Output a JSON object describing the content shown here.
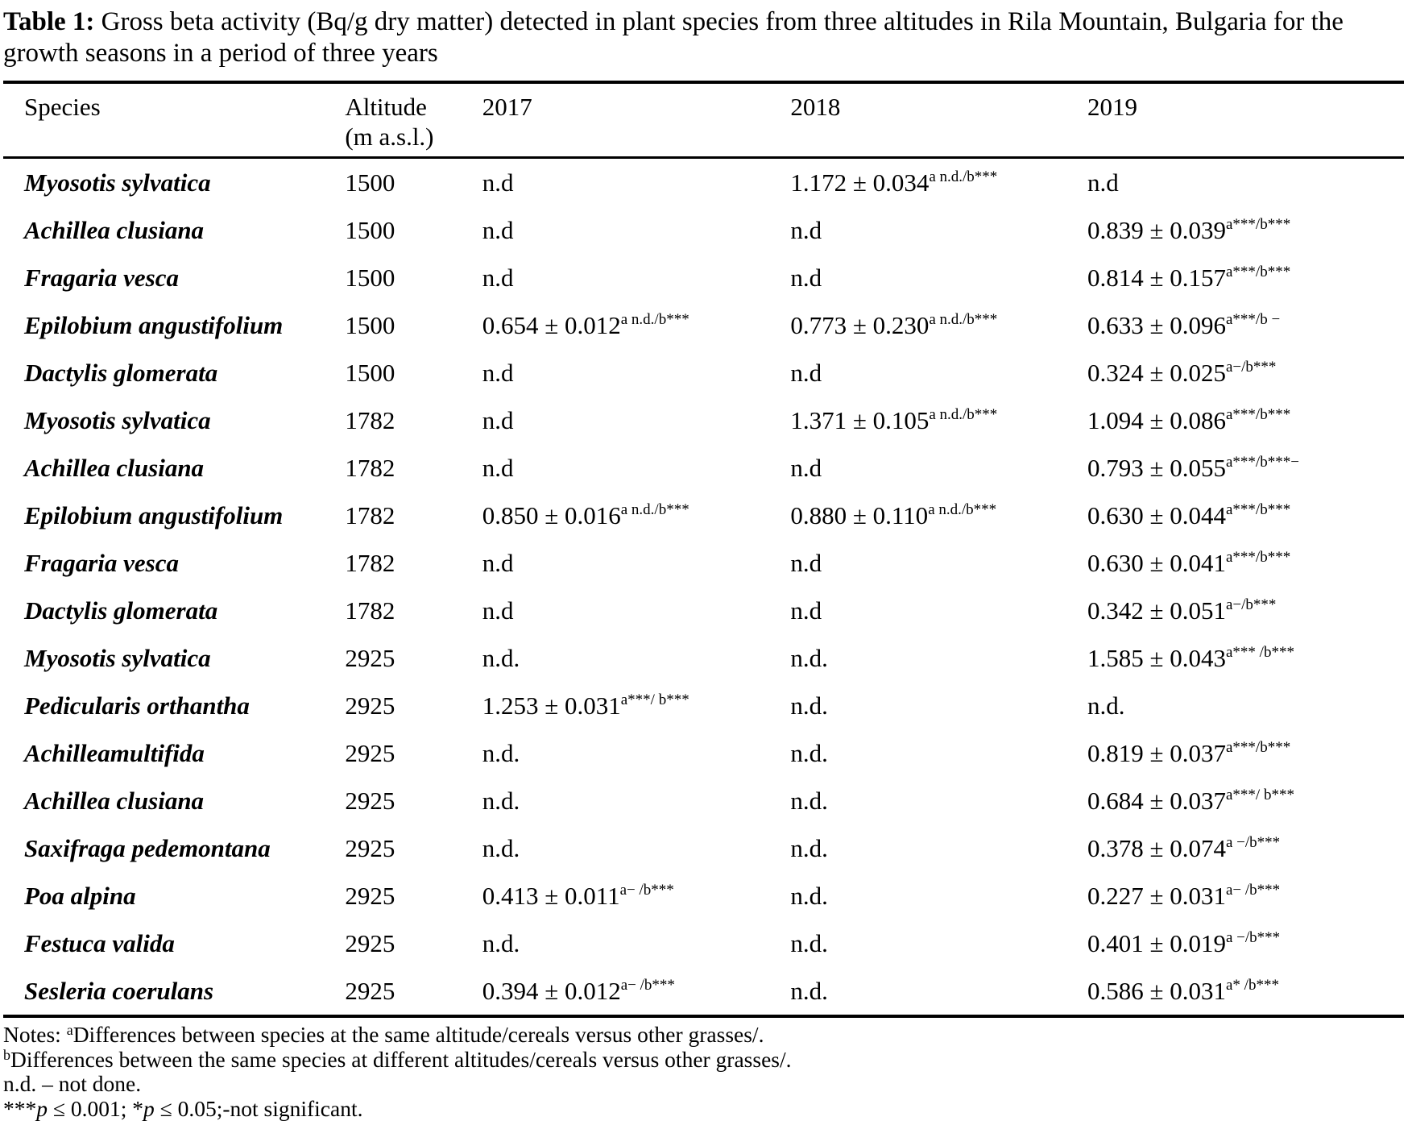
{
  "caption": {
    "label": "Table 1:",
    "text": " Gross beta activity (Bq/g dry matter) detected in plant species from three altitudes in Rila Mountain, Bulgaria for the growth seasons in a period of three years"
  },
  "table": {
    "headers": {
      "species": "Species",
      "altitude_line1": "Altitude",
      "altitude_line2": "(m a.s.l.)",
      "y2017": "2017",
      "y2018": "2018",
      "y2019": "2019"
    },
    "rows": [
      {
        "species": "Myosotis sylvatica",
        "altitude": "1500",
        "y2017": {
          "val": "n.d",
          "sup": ""
        },
        "y2018": {
          "val": "1.172 ± 0.034",
          "sup": "a n.d./b***"
        },
        "y2019": {
          "val": "n.d",
          "sup": ""
        }
      },
      {
        "species": "Achillea clusiana",
        "altitude": "1500",
        "y2017": {
          "val": "n.d",
          "sup": ""
        },
        "y2018": {
          "val": "n.d",
          "sup": ""
        },
        "y2019": {
          "val": "0.839 ± 0.039",
          "sup": "a***/b***"
        }
      },
      {
        "species": "Fragaria vesca",
        "altitude": "1500",
        "y2017": {
          "val": "n.d",
          "sup": ""
        },
        "y2018": {
          "val": "n.d",
          "sup": ""
        },
        "y2019": {
          "val": "0.814 ± 0.157",
          "sup": "a***/b***"
        }
      },
      {
        "species": "Epilobium angustifolium",
        "altitude": "1500",
        "y2017": {
          "val": "0.654 ± 0.012",
          "sup": "a n.d./b***"
        },
        "y2018": {
          "val": "0.773 ± 0.230",
          "sup": "a n.d./b***"
        },
        "y2019": {
          "val": "0.633 ± 0.096",
          "sup": "a***/b −"
        }
      },
      {
        "species": "Dactylis glomerata",
        "altitude": "1500",
        "y2017": {
          "val": "n.d",
          "sup": ""
        },
        "y2018": {
          "val": "n.d",
          "sup": ""
        },
        "y2019": {
          "val": "0.324 ± 0.025",
          "sup": "a−/b***"
        }
      },
      {
        "species": "Myosotis sylvatica",
        "altitude": "1782",
        "y2017": {
          "val": "n.d",
          "sup": ""
        },
        "y2018": {
          "val": "1.371 ± 0.105",
          "sup": "a n.d./b***"
        },
        "y2019": {
          "val": "1.094 ± 0.086",
          "sup": "a***/b***"
        }
      },
      {
        "species": "Achillea clusiana",
        "altitude": "1782",
        "y2017": {
          "val": "n.d",
          "sup": ""
        },
        "y2018": {
          "val": "n.d",
          "sup": ""
        },
        "y2019": {
          "val": "0.793 ± 0.055",
          "sup": "a***/b***−"
        }
      },
      {
        "species": "Epilobium angustifolium",
        "altitude": "1782",
        "y2017": {
          "val": "0.850 ± 0.016",
          "sup": "a n.d./b***"
        },
        "y2018": {
          "val": "0.880 ± 0.110",
          "sup": "a n.d./b***"
        },
        "y2019": {
          "val": "0.630 ± 0.044",
          "sup": "a***/b***"
        }
      },
      {
        "species": "Fragaria vesca",
        "altitude": "1782",
        "y2017": {
          "val": "n.d",
          "sup": ""
        },
        "y2018": {
          "val": "n.d",
          "sup": ""
        },
        "y2019": {
          "val": "0.630 ± 0.041",
          "sup": "a***/b***"
        }
      },
      {
        "species": "Dactylis glomerata",
        "altitude": "1782",
        "y2017": {
          "val": "n.d",
          "sup": ""
        },
        "y2018": {
          "val": "n.d",
          "sup": ""
        },
        "y2019": {
          "val": "0.342 ± 0.051",
          "sup": "a−/b***"
        }
      },
      {
        "species": "Myosotis sylvatica",
        "altitude": "2925",
        "y2017": {
          "val": "n.d.",
          "sup": ""
        },
        "y2018": {
          "val": "n.d.",
          "sup": ""
        },
        "y2019": {
          "val": "1.585 ± 0.043",
          "sup": "a*** /b***"
        }
      },
      {
        "species": "Pedicularis orthantha",
        "altitude": "2925",
        "y2017": {
          "val": "1.253 ± 0.031",
          "sup": "a***/ b***"
        },
        "y2018": {
          "val": "n.d.",
          "sup": ""
        },
        "y2019": {
          "val": "n.d.",
          "sup": ""
        }
      },
      {
        "species": "Achilleamultifida",
        "altitude": "2925",
        "y2017": {
          "val": "n.d.",
          "sup": ""
        },
        "y2018": {
          "val": "n.d.",
          "sup": ""
        },
        "y2019": {
          "val": "0.819 ± 0.037",
          "sup": "a***/b***"
        }
      },
      {
        "species": "Achillea clusiana",
        "altitude": "2925",
        "y2017": {
          "val": "n.d.",
          "sup": ""
        },
        "y2018": {
          "val": "n.d.",
          "sup": ""
        },
        "y2019": {
          "val": "0.684 ± 0.037",
          "sup": "a***/ b***"
        }
      },
      {
        "species": "Saxifraga pedemontana",
        "altitude": "2925",
        "y2017": {
          "val": "n.d.",
          "sup": ""
        },
        "y2018": {
          "val": "n.d.",
          "sup": ""
        },
        "y2019": {
          "val": "0.378 ± 0.074",
          "sup": "a −/b***"
        }
      },
      {
        "species": "Poa alpina",
        "altitude": "2925",
        "y2017": {
          "val": "0.413 ± 0.011",
          "sup": "a− /b***"
        },
        "y2018": {
          "val": "n.d.",
          "sup": ""
        },
        "y2019": {
          "val": "0.227 ± 0.031",
          "sup": "a− /b***"
        }
      },
      {
        "species": "Festuca valida",
        "altitude": "2925",
        "y2017": {
          "val": "n.d.",
          "sup": ""
        },
        "y2018": {
          "val": "n.d.",
          "sup": ""
        },
        "y2019": {
          "val": "0.401 ± 0.019",
          "sup": "a −/b***"
        }
      },
      {
        "species": "Sesleria coerulans",
        "altitude": "2925",
        "y2017": {
          "val": "0.394 ± 0.012",
          "sup": "a− /b***"
        },
        "y2018": {
          "val": "n.d.",
          "sup": ""
        },
        "y2019": {
          "val": "0.586 ± 0.031",
          "sup": "a* /b***"
        }
      }
    ]
  },
  "notes": {
    "lines": [
      {
        "prefix": "Notes: ",
        "sup": "a",
        "text": "Differences between species at the same altitude/cereals versus other grasses/."
      },
      {
        "prefix": "",
        "sup": "b",
        "text": "Differences between the same species at different altitudes/cereals versus other grasses/."
      },
      {
        "prefix": "",
        "sup": "",
        "text": "n.d. – not done."
      }
    ],
    "significance": [
      {
        "t": "***"
      },
      {
        "t": "p",
        "italic": true
      },
      {
        "t": " ≤ 0.001; "
      },
      {
        "t": "*"
      },
      {
        "t": "p",
        "italic": true
      },
      {
        "t": " ≤ 0.05;-not significant."
      }
    ]
  }
}
